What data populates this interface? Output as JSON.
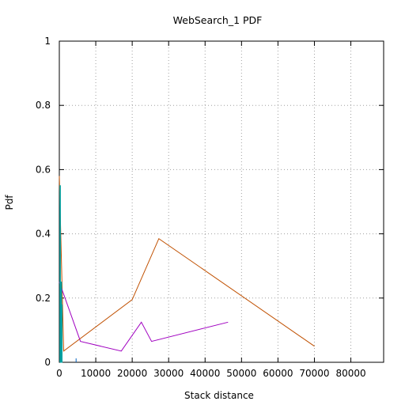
{
  "chart_data": {
    "type": "line",
    "title": "WebSearch_1 PDF",
    "xlabel": "Stack distance",
    "ylabel": "Pdf",
    "xlim": [
      0,
      89000
    ],
    "ylim": [
      0,
      1
    ],
    "xticks": [
      0,
      10000,
      20000,
      30000,
      40000,
      50000,
      60000,
      70000,
      80000
    ],
    "yticks": [
      0,
      0.2,
      0.4,
      0.6,
      0.8,
      1
    ],
    "ytick_labels": [
      "0",
      "0.2",
      "0.4",
      "0.6",
      "0.8",
      "1"
    ],
    "grid": true,
    "legend": "none",
    "series": [
      {
        "color": "#c05000",
        "x": [
          0,
          1200,
          20000,
          27300,
          70000
        ],
        "y": [
          0.58,
          0.035,
          0.195,
          0.385,
          0.05
        ]
      },
      {
        "color": "#a000c0",
        "x": [
          0,
          5800,
          17000,
          22500,
          25300,
          46300
        ],
        "y": [
          0.25,
          0.065,
          0.035,
          0.125,
          0.065,
          0.125
        ]
      },
      {
        "color": "#00a0a0",
        "x": [
          150,
          150,
          300,
          300,
          450,
          450,
          600,
          600,
          750,
          750
        ],
        "y": [
          0,
          0.55,
          0.55,
          0,
          0,
          0.25,
          0.25,
          0,
          0,
          0.18
        ]
      },
      {
        "color": "#0060c0",
        "x": [
          4600,
          4600
        ],
        "y": [
          0,
          0.012
        ]
      }
    ]
  }
}
